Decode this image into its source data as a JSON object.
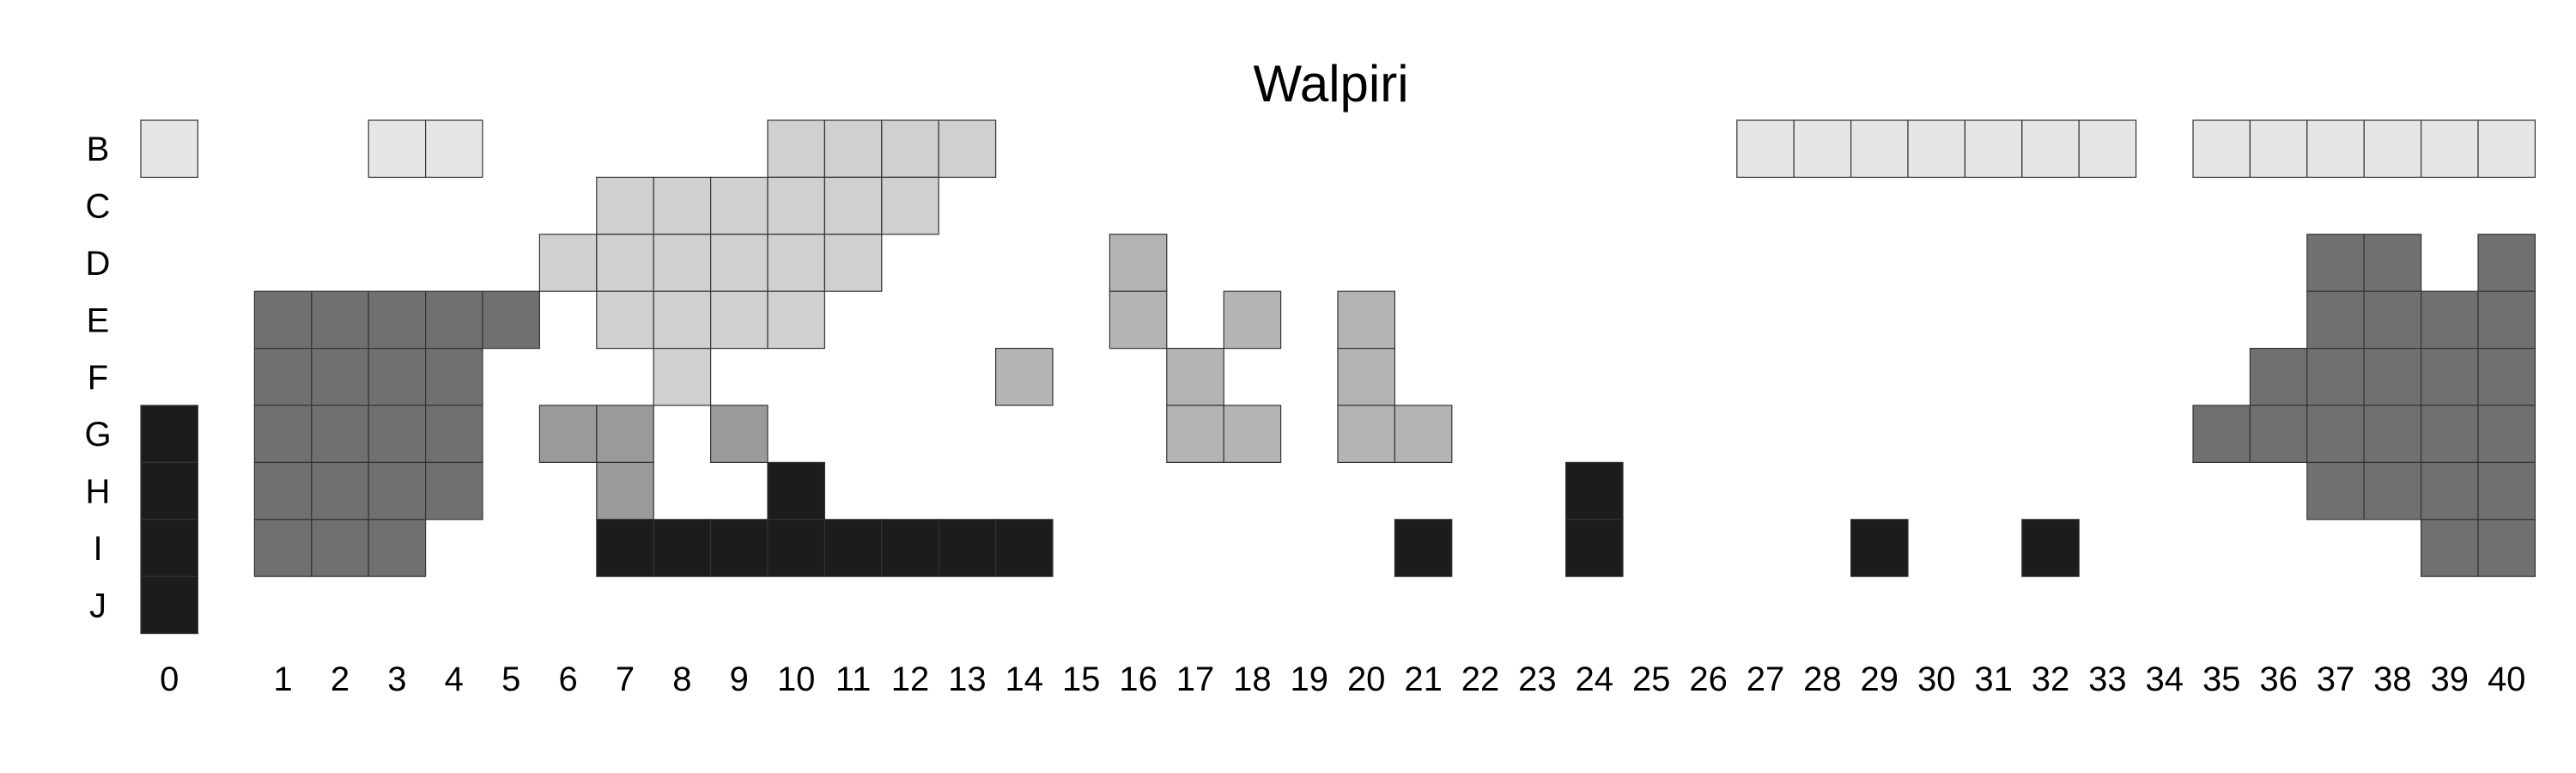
{
  "chart_data": {
    "type": "heatmap",
    "title": "Walpiri",
    "xlabel": "",
    "ylabel": "",
    "x_ticks": [
      "0",
      "1",
      "2",
      "3",
      "4",
      "5",
      "6",
      "7",
      "8",
      "9",
      "10",
      "11",
      "12",
      "13",
      "14",
      "15",
      "16",
      "17",
      "18",
      "19",
      "20",
      "21",
      "22",
      "23",
      "24",
      "25",
      "26",
      "27",
      "28",
      "29",
      "30",
      "31",
      "32",
      "33",
      "34",
      "35",
      "36",
      "37",
      "38",
      "39",
      "40"
    ],
    "y_ticks": [
      "B",
      "C",
      "D",
      "E",
      "F",
      "G",
      "H",
      "I",
      "J"
    ],
    "grid": false,
    "legend": "none",
    "groups": [
      {
        "color": "#e6e6e6",
        "cells": [
          [
            "B",
            0
          ],
          [
            "B",
            3
          ],
          [
            "B",
            4
          ],
          [
            "B",
            27
          ],
          [
            "B",
            28
          ],
          [
            "B",
            29
          ],
          [
            "B",
            30
          ],
          [
            "B",
            31
          ],
          [
            "B",
            32
          ],
          [
            "B",
            33
          ],
          [
            "B",
            35
          ],
          [
            "B",
            36
          ],
          [
            "B",
            37
          ],
          [
            "B",
            38
          ],
          [
            "B",
            39
          ],
          [
            "B",
            40
          ]
        ]
      },
      {
        "color": "#d0d0d0",
        "cells": [
          [
            "B",
            10
          ],
          [
            "B",
            11
          ],
          [
            "B",
            12
          ],
          [
            "B",
            13
          ],
          [
            "C",
            7
          ],
          [
            "C",
            8
          ],
          [
            "C",
            9
          ],
          [
            "C",
            10
          ],
          [
            "C",
            11
          ],
          [
            "C",
            12
          ],
          [
            "D",
            6
          ],
          [
            "D",
            7
          ],
          [
            "D",
            8
          ],
          [
            "D",
            9
          ],
          [
            "D",
            10
          ],
          [
            "D",
            11
          ],
          [
            "E",
            7
          ],
          [
            "E",
            8
          ],
          [
            "E",
            9
          ],
          [
            "E",
            10
          ],
          [
            "F",
            8
          ]
        ]
      },
      {
        "color": "#b4b4b4",
        "cells": [
          [
            "D",
            16
          ],
          [
            "E",
            16
          ],
          [
            "E",
            18
          ],
          [
            "E",
            20
          ],
          [
            "F",
            14
          ],
          [
            "F",
            17
          ],
          [
            "F",
            20
          ],
          [
            "G",
            17
          ],
          [
            "G",
            18
          ],
          [
            "G",
            20
          ],
          [
            "G",
            21
          ]
        ]
      },
      {
        "color": "#9a9a9a",
        "cells": [
          [
            "G",
            6
          ],
          [
            "G",
            7
          ],
          [
            "G",
            9
          ],
          [
            "H",
            7
          ]
        ]
      },
      {
        "color": "#707070",
        "cells": [
          [
            "E",
            1
          ],
          [
            "E",
            2
          ],
          [
            "E",
            3
          ],
          [
            "E",
            4
          ],
          [
            "E",
            5
          ],
          [
            "F",
            1
          ],
          [
            "F",
            2
          ],
          [
            "F",
            3
          ],
          [
            "F",
            4
          ],
          [
            "G",
            1
          ],
          [
            "G",
            2
          ],
          [
            "G",
            3
          ],
          [
            "G",
            4
          ],
          [
            "H",
            1
          ],
          [
            "H",
            2
          ],
          [
            "H",
            3
          ],
          [
            "H",
            4
          ],
          [
            "I",
            1
          ],
          [
            "I",
            2
          ],
          [
            "I",
            3
          ],
          [
            "D",
            37
          ],
          [
            "D",
            38
          ],
          [
            "D",
            40
          ],
          [
            "E",
            37
          ],
          [
            "E",
            38
          ],
          [
            "E",
            39
          ],
          [
            "E",
            40
          ],
          [
            "F",
            36
          ],
          [
            "F",
            37
          ],
          [
            "F",
            38
          ],
          [
            "F",
            39
          ],
          [
            "F",
            40
          ],
          [
            "G",
            35
          ],
          [
            "G",
            36
          ],
          [
            "G",
            37
          ],
          [
            "G",
            38
          ],
          [
            "G",
            39
          ],
          [
            "G",
            40
          ],
          [
            "H",
            37
          ],
          [
            "H",
            38
          ],
          [
            "H",
            39
          ],
          [
            "H",
            40
          ],
          [
            "I",
            39
          ],
          [
            "I",
            40
          ]
        ]
      },
      {
        "color": "#1c1c1c",
        "cells": [
          [
            "G",
            0
          ],
          [
            "H",
            0
          ],
          [
            "I",
            0
          ],
          [
            "J",
            0
          ],
          [
            "H",
            10
          ],
          [
            "I",
            7
          ],
          [
            "I",
            8
          ],
          [
            "I",
            9
          ],
          [
            "I",
            10
          ],
          [
            "I",
            11
          ],
          [
            "I",
            12
          ],
          [
            "I",
            13
          ],
          [
            "I",
            14
          ],
          [
            "I",
            21
          ],
          [
            "H",
            24
          ],
          [
            "I",
            24
          ],
          [
            "I",
            29
          ],
          [
            "I",
            32
          ]
        ]
      }
    ]
  }
}
